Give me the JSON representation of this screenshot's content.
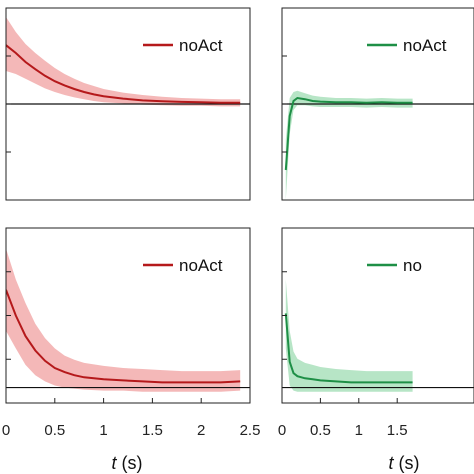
{
  "chart_data": [
    {
      "type": "line",
      "panel": "top-left",
      "legend": "noAct",
      "legend_placement": "top-right",
      "color": "#b5191b",
      "band_color": "#f0a0a0",
      "xlim": [
        0,
        2.5
      ],
      "x": [
        0,
        0.1,
        0.2,
        0.3,
        0.4,
        0.5,
        0.6,
        0.7,
        0.8,
        0.9,
        1.0,
        1.2,
        1.4,
        1.6,
        1.8,
        2.0,
        2.2,
        2.4
      ],
      "y": [
        0.98,
        0.85,
        0.7,
        0.58,
        0.47,
        0.38,
        0.31,
        0.25,
        0.2,
        0.16,
        0.13,
        0.09,
        0.06,
        0.045,
        0.035,
        0.03,
        0.02,
        0.02
      ],
      "upper": [
        1.45,
        1.2,
        1.0,
        0.85,
        0.72,
        0.6,
        0.5,
        0.42,
        0.35,
        0.3,
        0.25,
        0.19,
        0.15,
        0.12,
        0.1,
        0.09,
        0.08,
        0.08
      ],
      "lower": [
        0.55,
        0.5,
        0.42,
        0.34,
        0.26,
        0.2,
        0.15,
        0.11,
        0.08,
        0.05,
        0.03,
        0.01,
        -0.01,
        -0.02,
        -0.03,
        -0.03,
        -0.04,
        -0.04
      ],
      "baseline": 0
    },
    {
      "type": "line",
      "panel": "top-right",
      "legend": "noAct",
      "legend_placement": "top-right",
      "color": "#1e8f46",
      "band_color": "#9fdcb3",
      "xlim": [
        0,
        2.5
      ],
      "x": [
        0.05,
        0.1,
        0.15,
        0.2,
        0.3,
        0.4,
        0.5,
        0.7,
        0.9,
        1.1,
        1.3,
        1.5,
        1.7
      ],
      "y": [
        -1.1,
        -0.2,
        0.05,
        0.1,
        0.08,
        0.05,
        0.04,
        0.03,
        0.03,
        0.02,
        0.03,
        0.02,
        0.02
      ],
      "upper": [
        -0.6,
        0.1,
        0.2,
        0.22,
        0.18,
        0.14,
        0.12,
        0.1,
        0.1,
        0.09,
        0.1,
        0.09,
        0.09
      ],
      "lower": [
        -1.6,
        -0.5,
        -0.1,
        -0.02,
        -0.02,
        -0.04,
        -0.05,
        -0.05,
        -0.05,
        -0.06,
        -0.05,
        -0.06,
        -0.06
      ],
      "baseline": 0
    },
    {
      "type": "line",
      "panel": "bottom-left",
      "legend": "noAct",
      "legend_placement": "top-right",
      "color": "#b5191b",
      "band_color": "#f0a0a0",
      "xlim": [
        0,
        2.5
      ],
      "xticks": [
        "0",
        "0.5",
        "1",
        "1.5",
        "2",
        "2.5"
      ],
      "xtick_values": [
        0,
        0.5,
        1,
        1.5,
        2,
        2.5
      ],
      "xlabel_var": "t",
      "xlabel_unit": " (s)",
      "x": [
        0,
        0.1,
        0.2,
        0.3,
        0.4,
        0.5,
        0.6,
        0.7,
        0.8,
        1.0,
        1.2,
        1.4,
        1.6,
        1.8,
        2.0,
        2.2,
        2.4
      ],
      "y": [
        0.95,
        0.7,
        0.5,
        0.36,
        0.26,
        0.19,
        0.15,
        0.12,
        0.1,
        0.08,
        0.07,
        0.06,
        0.05,
        0.05,
        0.05,
        0.05,
        0.06
      ],
      "upper": [
        1.35,
        1.05,
        0.82,
        0.62,
        0.48,
        0.38,
        0.31,
        0.27,
        0.24,
        0.21,
        0.19,
        0.18,
        0.17,
        0.16,
        0.16,
        0.16,
        0.17
      ],
      "lower": [
        0.55,
        0.38,
        0.22,
        0.12,
        0.06,
        0.02,
        0.0,
        -0.01,
        -0.02,
        -0.03,
        -0.03,
        -0.04,
        -0.04,
        -0.04,
        -0.04,
        -0.04,
        -0.03
      ],
      "baseline": 0
    },
    {
      "type": "line",
      "panel": "bottom-right",
      "legend": "no",
      "legend_placement": "top-right",
      "color": "#1e8f46",
      "band_color": "#9fdcb3",
      "xlim": [
        0,
        2.5
      ],
      "xticks": [
        "0",
        "0.5",
        "1",
        "1.5"
      ],
      "xtick_values": [
        0,
        0.5,
        1,
        1.5
      ],
      "xlabel_var": "t",
      "xlabel_unit": " (s)",
      "x": [
        0.05,
        0.1,
        0.15,
        0.2,
        0.3,
        0.4,
        0.5,
        0.7,
        0.9,
        1.1,
        1.3,
        1.5,
        1.7
      ],
      "y": [
        0.72,
        0.25,
        0.14,
        0.11,
        0.09,
        0.08,
        0.07,
        0.06,
        0.05,
        0.05,
        0.05,
        0.05,
        0.05
      ],
      "upper": [
        1.05,
        0.55,
        0.35,
        0.28,
        0.24,
        0.22,
        0.2,
        0.18,
        0.17,
        0.16,
        0.16,
        0.16,
        0.16
      ],
      "lower": [
        0.38,
        0.02,
        -0.03,
        -0.04,
        -0.04,
        -0.04,
        -0.04,
        -0.04,
        -0.04,
        -0.04,
        -0.04,
        -0.04,
        -0.04
      ],
      "baseline": 0
    }
  ]
}
